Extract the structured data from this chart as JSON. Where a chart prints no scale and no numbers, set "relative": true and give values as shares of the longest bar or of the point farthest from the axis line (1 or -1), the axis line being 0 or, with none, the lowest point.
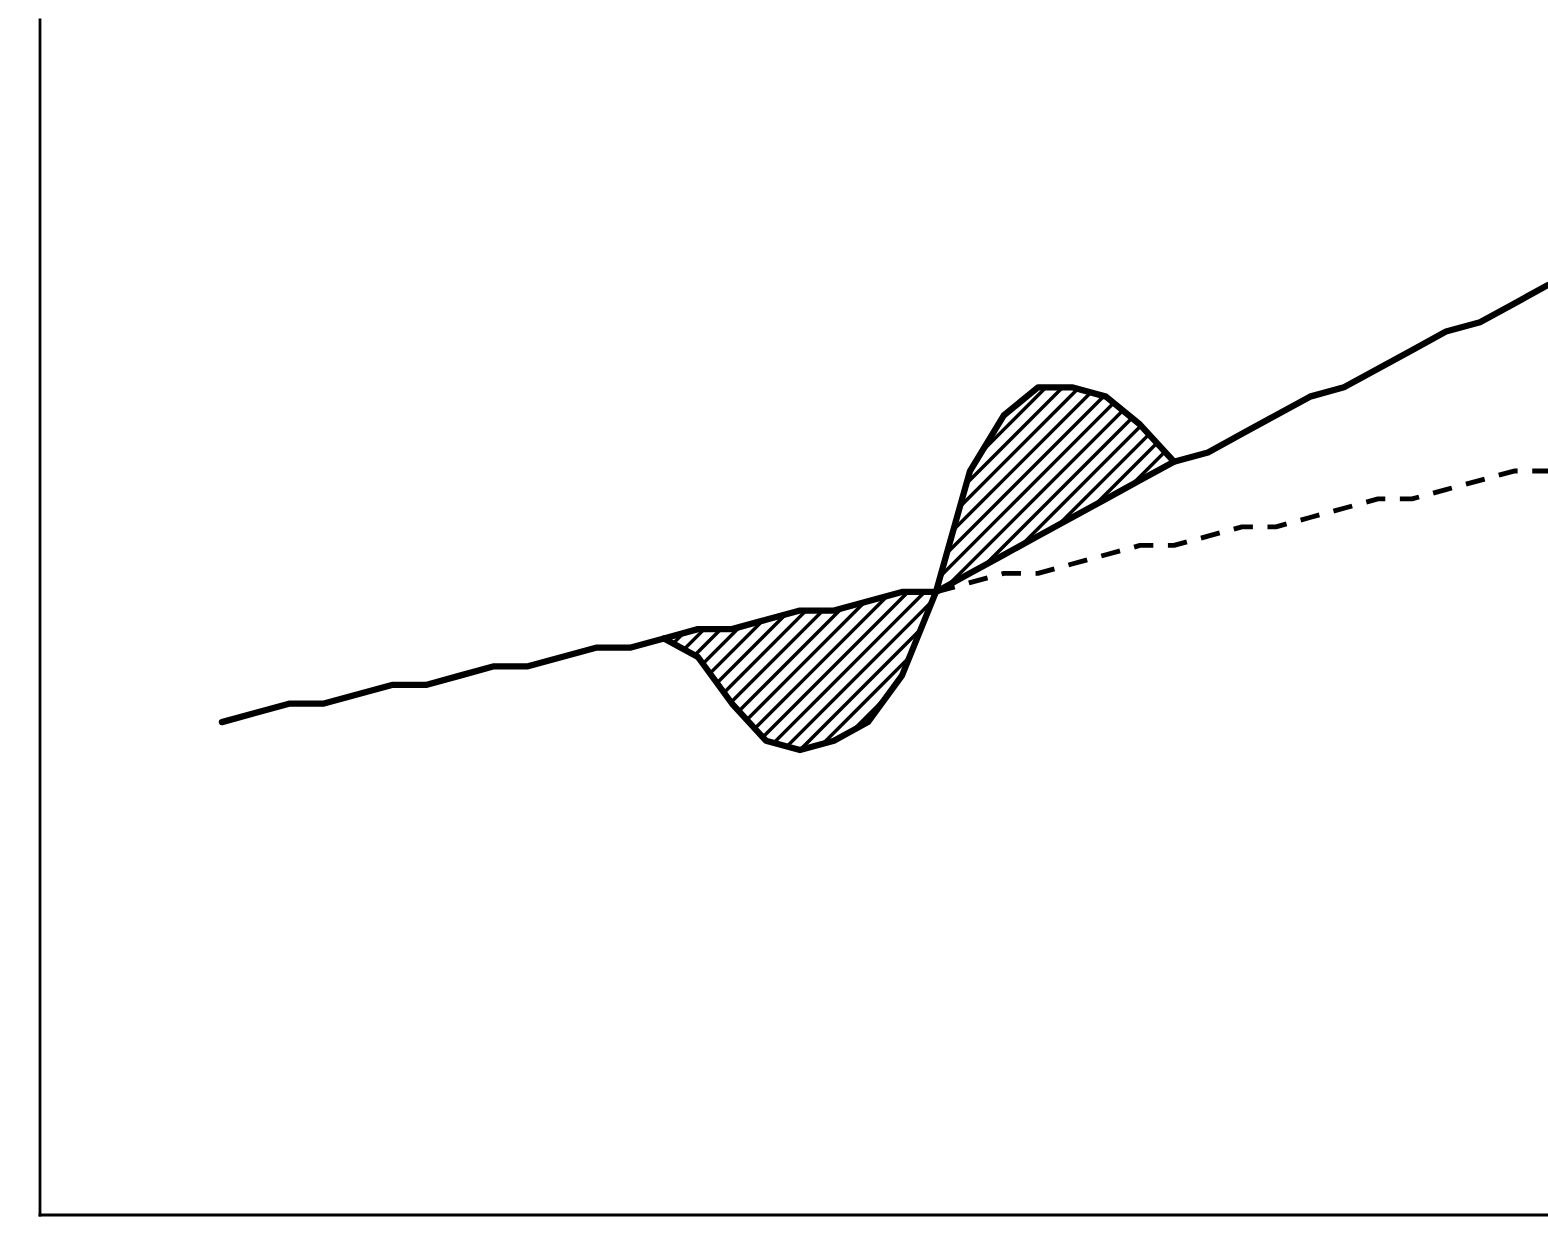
{
  "chart_data": {
    "type": "line",
    "relative": true,
    "grid": false,
    "legend": false,
    "marker": "none",
    "categories": [
      null,
      null,
      null,
      null,
      null,
      null,
      null,
      null,
      null,
      null,
      null,
      null,
      null,
      null,
      null,
      null,
      null,
      null,
      null,
      null,
      null,
      null,
      null,
      null,
      null,
      null,
      null,
      null,
      null,
      null,
      null,
      null,
      null,
      null,
      null,
      null,
      null,
      null,
      null,
      null
    ],
    "series": [
      {
        "color": "#000000",
        "line_style": "solid",
        "values": [
          0.53,
          0.54,
          0.55,
          0.55,
          0.56,
          0.57,
          0.57,
          0.58,
          0.59,
          0.59,
          0.6,
          0.61,
          0.61,
          0.62,
          0.63,
          0.63,
          0.64,
          0.65,
          0.65,
          0.66,
          0.67,
          0.67,
          0.69,
          0.71,
          0.73,
          0.75,
          0.77,
          0.79,
          0.81,
          0.82,
          0.84,
          0.86,
          0.88,
          0.89,
          0.91,
          0.93,
          0.95,
          0.96,
          0.98,
          1.0
        ]
      },
      {
        "color": "#000000",
        "line_style": "dashed",
        "values": [
          null,
          null,
          null,
          null,
          null,
          null,
          null,
          null,
          null,
          null,
          null,
          null,
          null,
          null,
          null,
          null,
          null,
          null,
          null,
          null,
          null,
          0.67,
          0.68,
          0.69,
          0.69,
          0.7,
          0.71,
          0.72,
          0.72,
          0.73,
          0.74,
          0.74,
          0.75,
          0.76,
          0.77,
          0.77,
          0.78,
          0.79,
          0.8,
          0.8
        ]
      },
      {
        "color": "#000000",
        "line_style": "solid",
        "values": [
          null,
          null,
          null,
          null,
          null,
          null,
          null,
          null,
          null,
          null,
          null,
          null,
          null,
          0.62,
          0.6,
          0.55,
          0.51,
          0.5,
          0.51,
          0.53,
          0.58,
          0.67,
          0.8,
          0.86,
          0.89,
          0.89,
          0.88,
          0.85,
          0.81,
          null,
          null,
          null,
          null,
          null,
          null,
          null,
          null,
          null,
          null,
          null
        ],
        "lower": [
          null,
          null,
          null,
          null,
          null,
          null,
          null,
          null,
          null,
          null,
          null,
          null,
          null,
          0.62,
          0.6,
          0.55,
          0.51,
          0.5,
          0.51,
          0.53,
          0.58,
          0.67,
          0.69,
          0.71,
          0.73,
          0.75,
          0.77,
          0.79,
          0.81,
          null,
          null,
          null,
          null,
          null,
          null,
          null,
          null,
          null,
          null,
          null
        ],
        "upper": [
          null,
          null,
          null,
          null,
          null,
          null,
          null,
          null,
          null,
          null,
          null,
          null,
          null,
          0.62,
          0.63,
          0.63,
          0.64,
          0.65,
          0.65,
          0.66,
          0.67,
          0.67,
          0.8,
          0.86,
          0.89,
          0.89,
          0.88,
          0.85,
          0.81,
          null,
          null,
          null,
          null,
          null,
          null,
          null,
          null,
          null,
          null,
          null
        ]
      }
    ]
  }
}
